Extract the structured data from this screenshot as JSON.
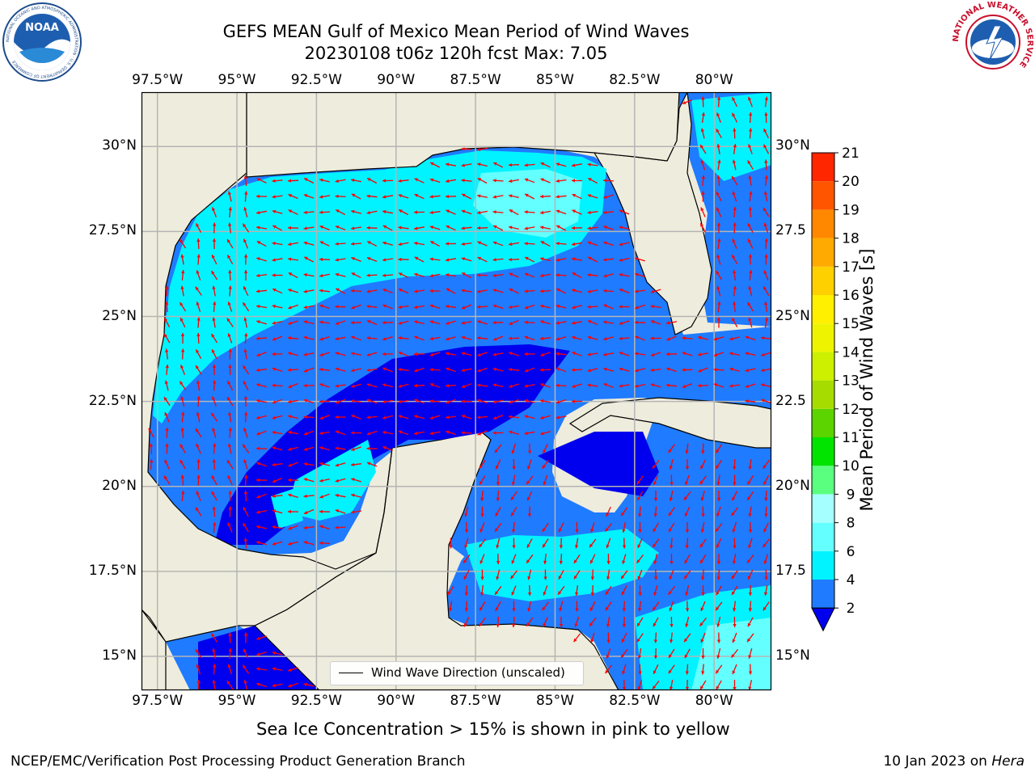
{
  "title": {
    "line1": "GEFS MEAN Gulf of Mexico Mean Period of Wind Waves",
    "line2": "20230108 t06z 120h fcst   Max: 7.05"
  },
  "map": {
    "lon_ticks": [
      "97.5°W",
      "95°W",
      "92.5°W",
      "90°W",
      "87.5°W",
      "85°W",
      "82.5°W",
      "80°W"
    ],
    "lat_ticks": [
      "30°N",
      "27.5°N",
      "25°N",
      "22.5°N",
      "20°N",
      "17.5°N",
      "15°N"
    ],
    "lat_ticks_right": [
      "30°N",
      "27.5",
      "25°N",
      "22.5",
      "20°N",
      "17.5",
      "15°N"
    ],
    "lon_range": [
      -98,
      -78.2
    ],
    "lat_range": [
      14,
      31.6
    ],
    "legend_label": "Wind Wave Direction (unscaled)",
    "colors": {
      "land": "#eeecdc",
      "level_2_4": "#1f7bff",
      "level_lt_2": "#0000ee",
      "level_4_6": "#00f3ff",
      "level_6_8": "#64ffff",
      "arrow": "#ff0000",
      "grid": "#b5b5b5"
    }
  },
  "colorbar": {
    "title": "Mean Period of Wind Waves [s]",
    "labels": [
      "2",
      "4",
      "6",
      "8",
      "9",
      "10",
      "11",
      "12",
      "13",
      "14",
      "15",
      "16",
      "17",
      "18",
      "19",
      "20",
      "21"
    ],
    "colors": [
      "#1f7bff",
      "#00f3ff",
      "#64ffff",
      "#a6ffff",
      "#5aff7f",
      "#00e400",
      "#5cd400",
      "#a7dc00",
      "#ccf000",
      "#eef400",
      "#fff000",
      "#ffd000",
      "#ffaa00",
      "#ff8800",
      "#ff5500",
      "#ff2600"
    ],
    "under_color": "#0000ee"
  },
  "note": "Sea Ice Concentration > 15% is shown in pink to yellow",
  "credit": "NCEP/EMC/Verification Post Processing Product Generation Branch",
  "date": "10 Jan 2023 on ",
  "host": "Hera",
  "logos": {
    "left": "NOAA",
    "left_ring": "NATIONAL OCEANIC AND ATMOSPHERIC ADMINISTRATION · U.S. DEPARTMENT OF COMMERCE",
    "right_ring": "NATIONAL WEATHER SERVICE"
  }
}
